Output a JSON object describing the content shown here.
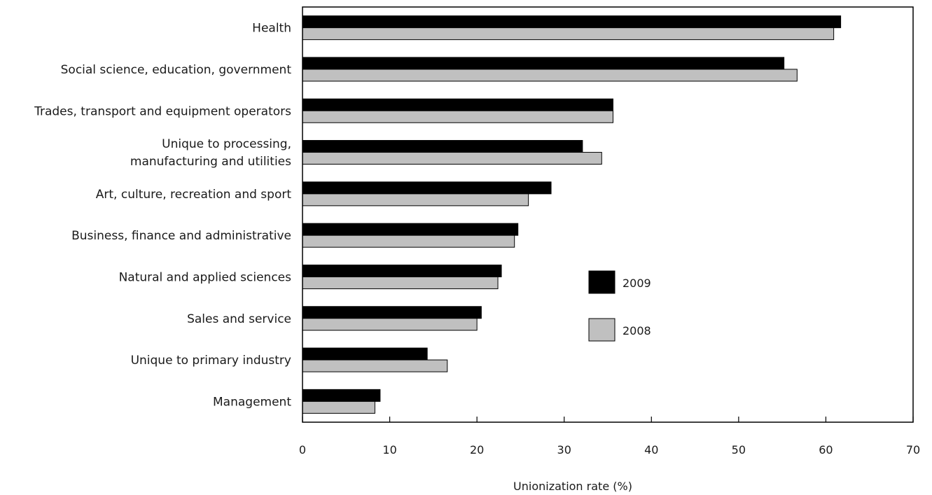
{
  "chart_data": {
    "type": "bar",
    "orientation": "horizontal",
    "categories": [
      [
        "Health"
      ],
      [
        "Social science, education, government"
      ],
      [
        "Trades, transport and equipment operators"
      ],
      [
        "Unique to processing,",
        "manufacturing and utilities"
      ],
      [
        "Art, culture, recreation and sport"
      ],
      [
        "Business, finance and administrative"
      ],
      [
        "Natural and applied sciences"
      ],
      [
        "Sales and service"
      ],
      [
        "Unique to primary industry"
      ],
      [
        "Management"
      ]
    ],
    "series": [
      {
        "name": "2009",
        "color": "#000000",
        "values": [
          61.7,
          55.2,
          35.6,
          32.1,
          28.5,
          24.7,
          22.8,
          20.5,
          14.3,
          8.9
        ]
      },
      {
        "name": "2008",
        "color": "#c0c0c0",
        "values": [
          60.9,
          56.7,
          35.6,
          34.3,
          25.9,
          24.3,
          22.4,
          20.0,
          16.6,
          8.3
        ]
      }
    ],
    "xlabel": "Unionization rate (%)",
    "ylabel": "",
    "title": "",
    "xlim": [
      0,
      70
    ],
    "xticks": [
      0,
      10,
      20,
      30,
      40,
      50,
      60,
      70
    ],
    "grid": false,
    "legend_position": "center-right"
  }
}
